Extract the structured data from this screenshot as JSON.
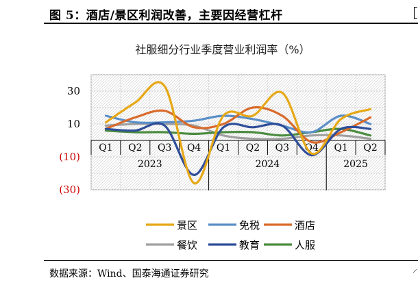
{
  "figure": {
    "title": "图 5：酒店/景区利润改善，主要因经营杠杆",
    "source": "数据来源：Wind、国泰海通证券研究"
  },
  "chart_data": {
    "type": "line",
    "title": "社服细分行业季度营业利润率（%）",
    "x": [
      "Q1",
      "Q2",
      "Q3",
      "Q4",
      "Q1",
      "Q2",
      "Q3",
      "Q4",
      "Q1",
      "Q2"
    ],
    "year_groups": [
      {
        "label": "2023",
        "span": 4
      },
      {
        "label": "2024",
        "span": 4
      },
      {
        "label": "2025",
        "span": 2
      }
    ],
    "ylim": [
      -30,
      40
    ],
    "yticks": [
      {
        "value": 30,
        "label": "30",
        "color": "#000000"
      },
      {
        "value": 10,
        "label": "10",
        "color": "#000000"
      },
      {
        "value": -10,
        "label": "(10)",
        "color": "#cc0000"
      },
      {
        "value": -30,
        "label": "(30)",
        "color": "#cc0000"
      }
    ],
    "grid": "dotted",
    "legend_position": "bottom",
    "series": [
      {
        "name": "景区",
        "color": "#E6A817",
        "values": [
          11,
          23,
          33,
          -26,
          15,
          15,
          29,
          -8,
          13,
          19
        ]
      },
      {
        "name": "免税",
        "color": "#5B8FC7",
        "values": [
          15,
          11,
          11,
          12,
          15,
          13,
          9,
          5,
          15,
          10
        ]
      },
      {
        "name": "酒店",
        "color": "#D96A2B",
        "values": [
          7,
          14,
          18,
          8,
          10,
          20,
          15,
          -1,
          5,
          14
        ]
      },
      {
        "name": "餐饮",
        "color": "#A0A0A0",
        "values": [
          9,
          10,
          10,
          9,
          3,
          1,
          1,
          3,
          3,
          1
        ]
      },
      {
        "name": "教育",
        "color": "#2E4D99",
        "values": [
          7,
          6,
          9,
          -21,
          8,
          8,
          9,
          -9,
          7,
          7
        ]
      },
      {
        "name": "人服",
        "color": "#4A8C3F",
        "values": [
          6,
          5,
          5,
          4,
          5,
          5,
          3,
          5,
          7,
          3
        ]
      }
    ]
  }
}
